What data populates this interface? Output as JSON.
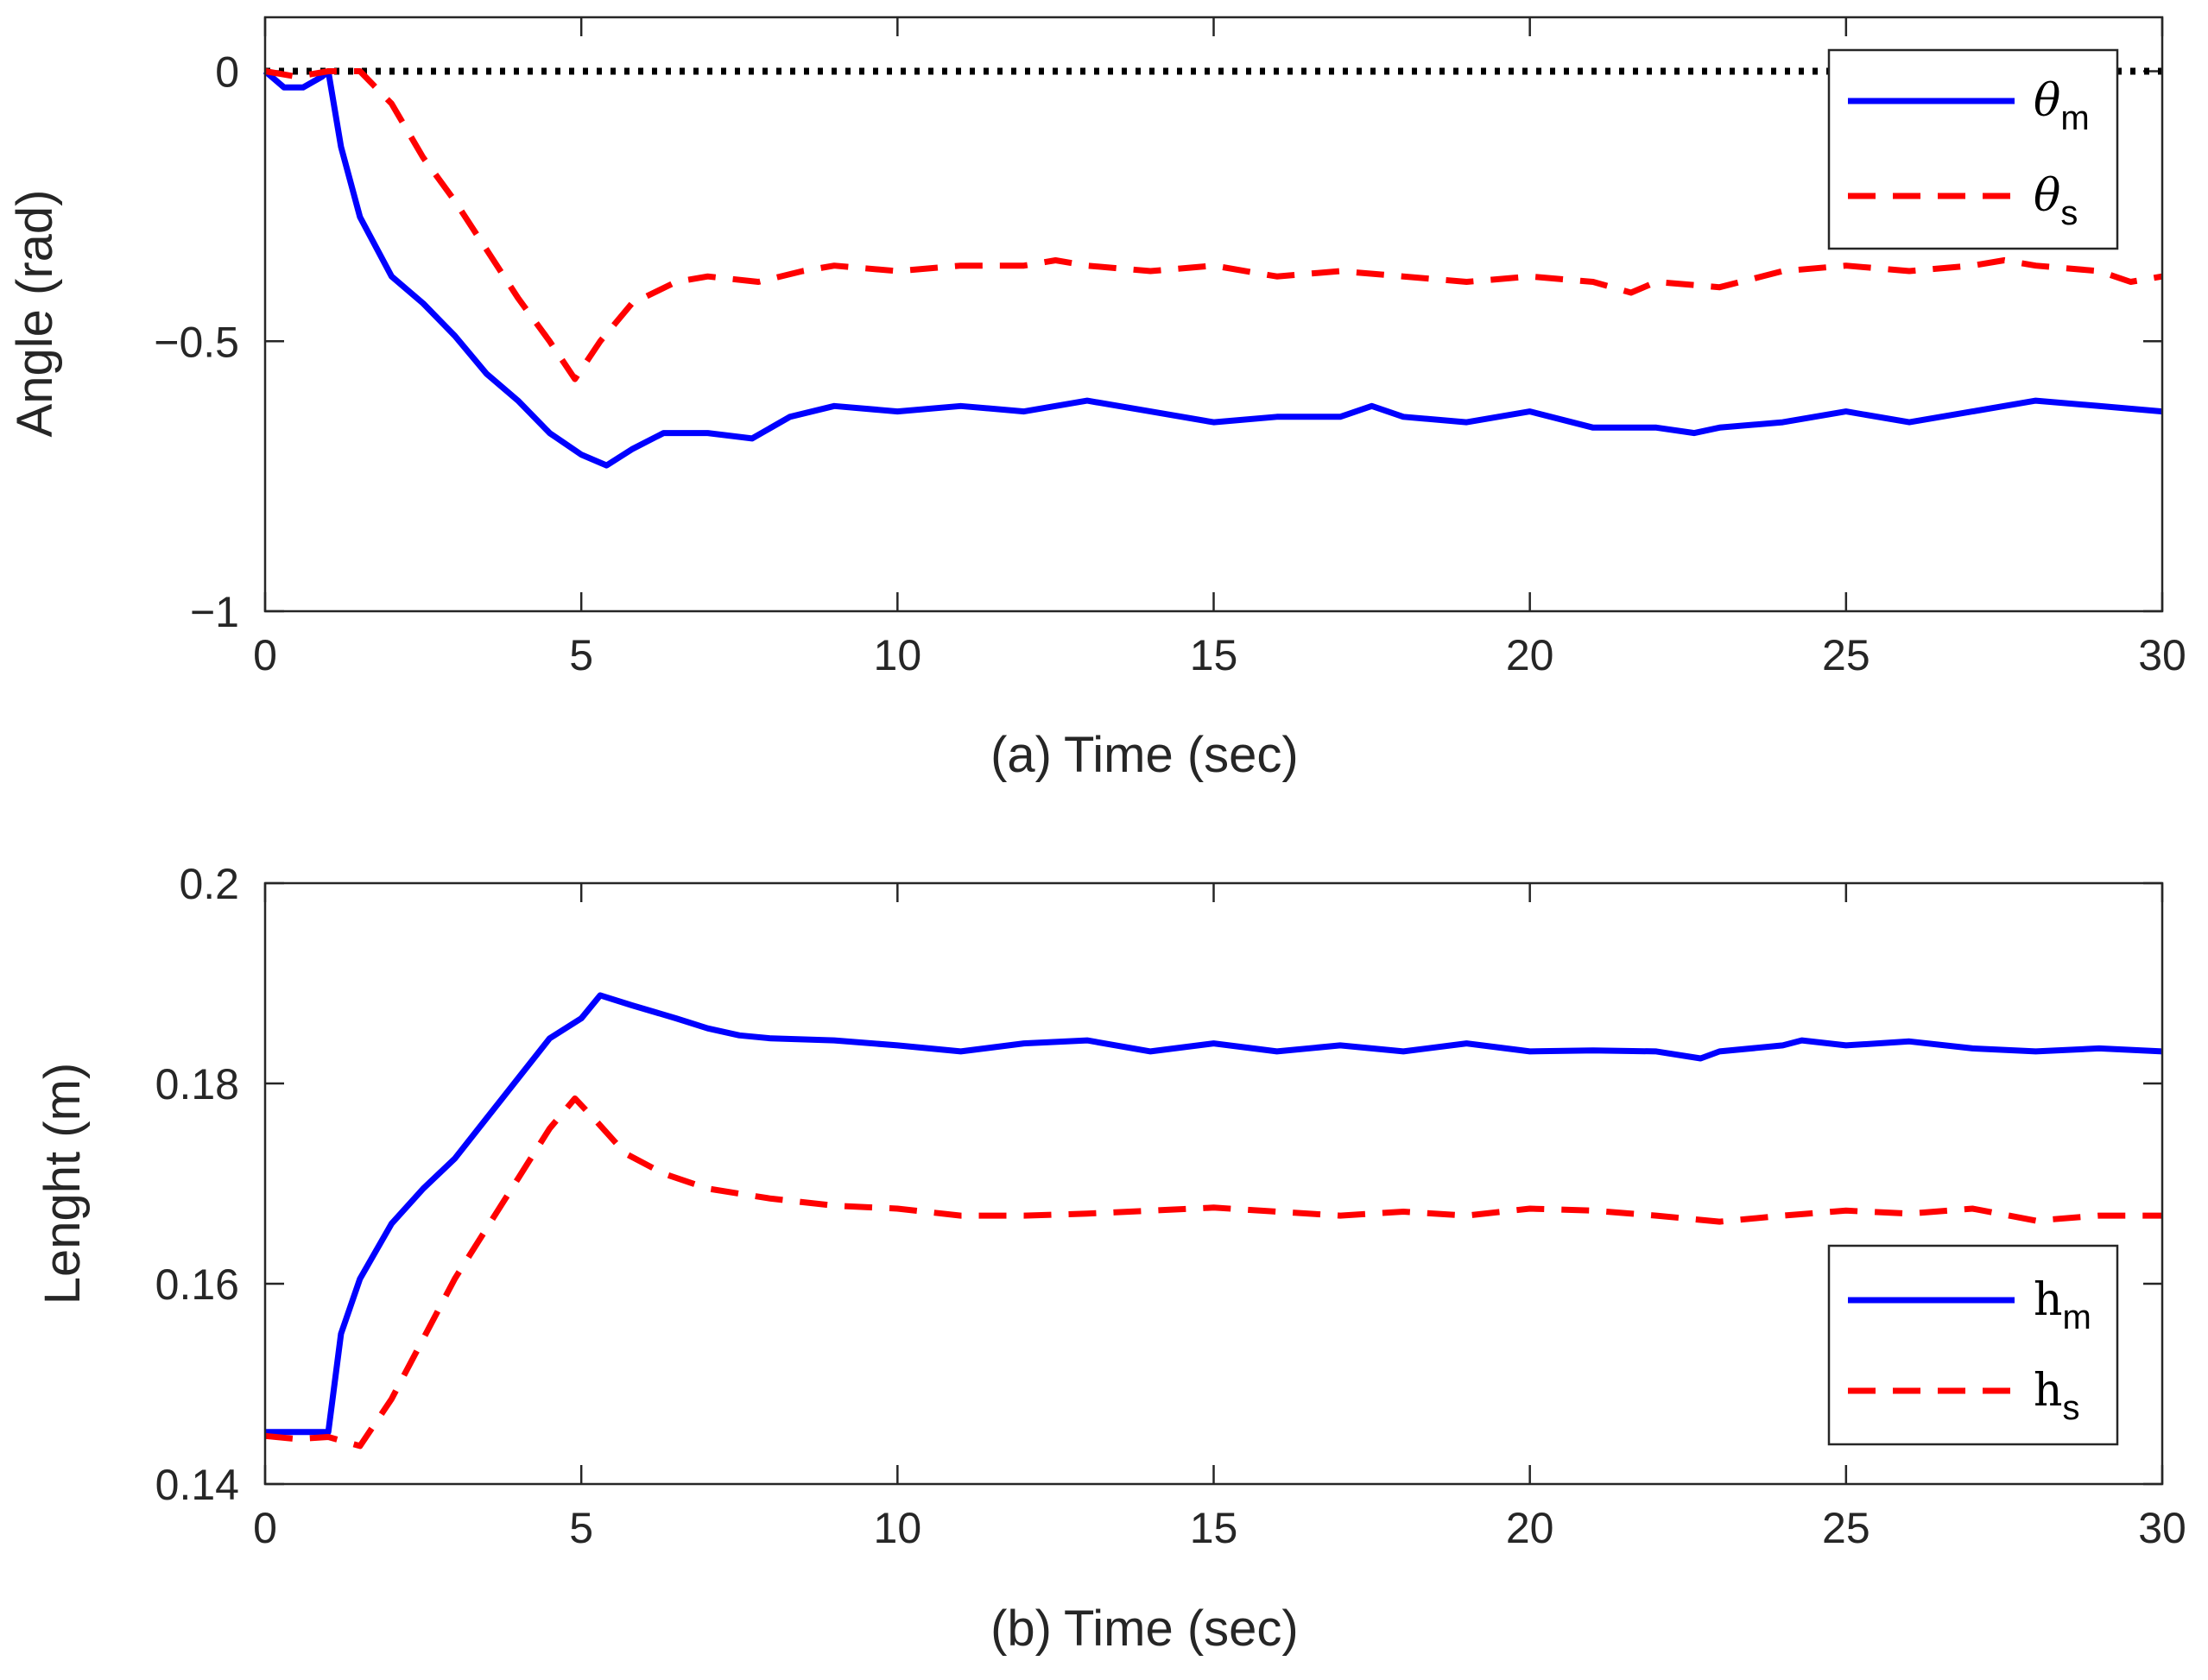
{
  "chart_data": [
    {
      "type": "line",
      "panel_label": "(a)",
      "xlabel": "Time (sec)",
      "ylabel": "Angle (rad)",
      "xlim": [
        0,
        30
      ],
      "ylim": [
        -1,
        0.1
      ],
      "xticks": [
        0,
        5,
        10,
        15,
        20,
        25,
        30
      ],
      "xtick_labels": [
        "0",
        "5",
        "10",
        "15",
        "20",
        "25",
        "30"
      ],
      "yticks": [
        0,
        -0.5,
        -1
      ],
      "ytick_labels": [
        "0",
        "−0.5",
        "−1"
      ],
      "grid": false,
      "legend_position": "top-right",
      "reference_line": {
        "y": 0,
        "style": "dotted",
        "color": "#000000"
      },
      "series": [
        {
          "name": "θm",
          "symbol": "θ",
          "subscript": "m",
          "color": "#0000ff",
          "style": "solid",
          "x": [
            0,
            0.3,
            0.6,
            0.9,
            1.0,
            1.2,
            1.5,
            2.0,
            2.5,
            3.0,
            3.5,
            4.0,
            4.5,
            5.0,
            5.4,
            5.8,
            6.3,
            7.0,
            7.7,
            8.3,
            9.0,
            10.0,
            11.0,
            12.0,
            13.0,
            14.0,
            15.0,
            16.0,
            17.0,
            17.5,
            18.0,
            19.0,
            20.0,
            21.0,
            22.0,
            22.6,
            23.0,
            24.0,
            25.0,
            26.0,
            27.0,
            28.0,
            29.0,
            30.0
          ],
          "values": [
            0,
            -0.03,
            -0.03,
            -0.01,
            0,
            -0.14,
            -0.27,
            -0.38,
            -0.43,
            -0.49,
            -0.56,
            -0.61,
            -0.67,
            -0.71,
            -0.73,
            -0.7,
            -0.67,
            -0.67,
            -0.68,
            -0.64,
            -0.62,
            -0.63,
            -0.62,
            -0.63,
            -0.61,
            -0.63,
            -0.65,
            -0.64,
            -0.64,
            -0.62,
            -0.64,
            -0.65,
            -0.63,
            -0.66,
            -0.66,
            -0.67,
            -0.66,
            -0.65,
            -0.63,
            -0.65,
            -0.63,
            -0.61,
            -0.62,
            -0.63
          ]
        },
        {
          "name": "θs",
          "symbol": "θ",
          "subscript": "s",
          "color": "#ff0000",
          "style": "dashed",
          "x": [
            0,
            0.5,
            1.0,
            1.5,
            2.0,
            2.5,
            3.0,
            3.5,
            4.0,
            4.5,
            4.9,
            5.3,
            5.8,
            6.5,
            7.0,
            7.8,
            8.5,
            9.0,
            10.0,
            11.0,
            12.0,
            12.5,
            13.0,
            14.0,
            15.0,
            16.0,
            17.0,
            18.0,
            19.0,
            20.0,
            21.0,
            21.6,
            22.0,
            23.0,
            24.0,
            25.0,
            26.0,
            27.0,
            27.5,
            28.0,
            29.0,
            29.5,
            30.0
          ],
          "values": [
            0,
            -0.01,
            0,
            0,
            -0.06,
            -0.16,
            -0.24,
            -0.33,
            -0.42,
            -0.5,
            -0.57,
            -0.5,
            -0.43,
            -0.39,
            -0.38,
            -0.39,
            -0.37,
            -0.36,
            -0.37,
            -0.36,
            -0.36,
            -0.35,
            -0.36,
            -0.37,
            -0.36,
            -0.38,
            -0.37,
            -0.38,
            -0.39,
            -0.38,
            -0.39,
            -0.41,
            -0.39,
            -0.4,
            -0.37,
            -0.36,
            -0.37,
            -0.36,
            -0.35,
            -0.36,
            -0.37,
            -0.39,
            -0.38
          ]
        }
      ]
    },
    {
      "type": "line",
      "panel_label": "(b)",
      "xlabel": "Time (sec)",
      "ylabel": "Lenght (m)",
      "xlim": [
        0,
        30
      ],
      "ylim": [
        0.14,
        0.2
      ],
      "xticks": [
        0,
        5,
        10,
        15,
        20,
        25,
        30
      ],
      "xtick_labels": [
        "0",
        "5",
        "10",
        "15",
        "20",
        "25",
        "30"
      ],
      "yticks": [
        0.14,
        0.16,
        0.18,
        0.2
      ],
      "ytick_labels": [
        "0.14",
        "0.16",
        "0.18",
        "0.2"
      ],
      "grid": false,
      "legend_position": "bottom-right",
      "series": [
        {
          "name": "hm",
          "symbol": "h",
          "subscript": "m",
          "color": "#0000ff",
          "style": "solid",
          "x": [
            0,
            0.5,
            1.0,
            1.2,
            1.5,
            2.0,
            2.5,
            3.0,
            3.5,
            4.0,
            4.5,
            5.0,
            5.3,
            5.8,
            6.5,
            7.0,
            7.5,
            8.0,
            9.0,
            10.0,
            11.0,
            12.0,
            13.0,
            14.0,
            15.0,
            16.0,
            17.0,
            18.0,
            19.0,
            20.0,
            21.0,
            22.0,
            22.7,
            23.0,
            24.0,
            24.3,
            25.0,
            26.0,
            27.0,
            28.0,
            29.0,
            30.0
          ],
          "values": [
            0.1452,
            0.1452,
            0.1452,
            0.155,
            0.1605,
            0.166,
            0.1695,
            0.1725,
            0.1765,
            0.1805,
            0.1845,
            0.1865,
            0.1888,
            0.1878,
            0.1865,
            0.1855,
            0.1848,
            0.1845,
            0.1843,
            0.1838,
            0.1832,
            0.184,
            0.1843,
            0.1832,
            0.184,
            0.1832,
            0.1838,
            0.1832,
            0.184,
            0.1832,
            0.1833,
            0.1832,
            0.1825,
            0.1832,
            0.1838,
            0.1843,
            0.1838,
            0.1842,
            0.1835,
            0.1832,
            0.1835,
            0.1832
          ]
        },
        {
          "name": "hs",
          "symbol": "h",
          "subscript": "s",
          "color": "#ff0000",
          "style": "dashed",
          "x": [
            0,
            0.5,
            1.0,
            1.5,
            2.0,
            2.5,
            3.0,
            3.5,
            4.0,
            4.5,
            4.9,
            5.2,
            5.7,
            6.3,
            7.0,
            8.0,
            9.0,
            10.0,
            11.0,
            12.0,
            13.0,
            14.0,
            15.0,
            16.0,
            17.0,
            18.0,
            19.0,
            20.0,
            21.0,
            22.0,
            23.0,
            24.0,
            25.0,
            26.0,
            27.0,
            28.0,
            29.0,
            30.0
          ],
          "values": [
            0.1448,
            0.1445,
            0.1447,
            0.1438,
            0.1485,
            0.1545,
            0.1605,
            0.1655,
            0.1705,
            0.1755,
            0.1785,
            0.1765,
            0.173,
            0.171,
            0.1695,
            0.1685,
            0.1678,
            0.1675,
            0.1668,
            0.1668,
            0.167,
            0.1673,
            0.1676,
            0.1672,
            0.1668,
            0.1672,
            0.1668,
            0.1675,
            0.1673,
            0.1668,
            0.1662,
            0.1668,
            0.1673,
            0.167,
            0.1675,
            0.1663,
            0.1668,
            0.1668
          ]
        }
      ]
    }
  ]
}
